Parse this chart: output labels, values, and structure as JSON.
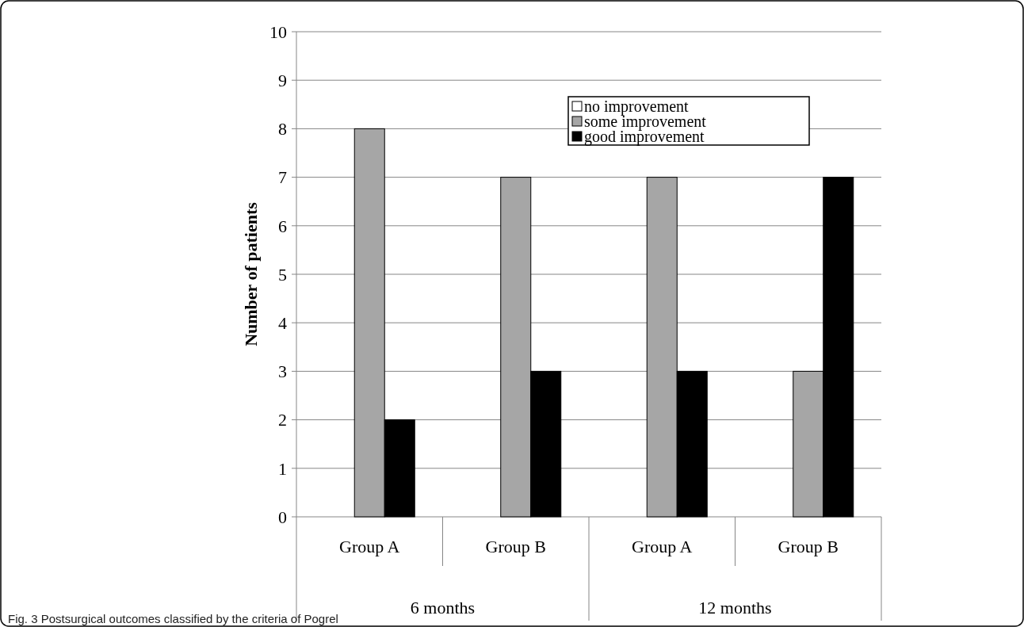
{
  "chart_data": {
    "type": "bar",
    "title": "Fig. 3 Postsurgical outcomes classified by the criteria of Pogrel",
    "ylabel": "Number of patients",
    "categories": [
      "Group A",
      "Group B",
      "Group A",
      "Group B"
    ],
    "annotations": [
      "6 months",
      "12 months"
    ],
    "series": [
      {
        "name": "no improvement",
        "color": "#ffffff",
        "values": [
          0,
          0,
          0,
          0
        ]
      },
      {
        "name": "some improvement",
        "color": "#a6a6a6",
        "values": [
          8,
          7,
          7,
          3
        ]
      },
      {
        "name": "good improvement",
        "color": "#000000",
        "values": [
          2,
          3,
          3,
          7
        ]
      }
    ],
    "ylim": [
      0,
      10
    ],
    "yticks": [
      0,
      1,
      2,
      3,
      4,
      5,
      6,
      7,
      8,
      9,
      10
    ],
    "grid": "y",
    "legend": "top right"
  }
}
